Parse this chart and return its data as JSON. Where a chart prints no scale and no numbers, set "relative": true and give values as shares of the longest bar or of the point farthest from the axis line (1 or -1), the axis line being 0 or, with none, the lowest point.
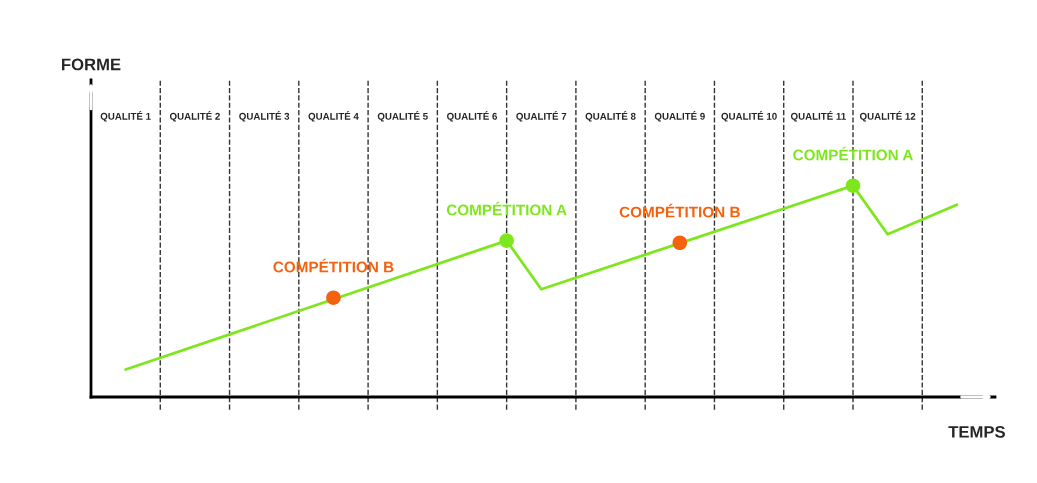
{
  "chart_data": {
    "type": "line",
    "relative": true,
    "xlabel": "TEMPS",
    "ylabel": "FORME",
    "categories": [
      "QUALITÉ 1",
      null,
      "QUALITÉ 2",
      null,
      "QUALITÉ 3",
      null,
      "QUALITÉ 4",
      null,
      "QUALITÉ 5",
      null,
      "QUALITÉ 6",
      null,
      "QUALITÉ 7",
      null,
      "QUALITÉ 8",
      null,
      "QUALITÉ 9",
      null,
      "QUALITÉ 10",
      null,
      "QUALITÉ 11",
      null,
      "QUALITÉ 12",
      null,
      null
    ],
    "series": [
      {
        "color": "#7ee61c",
        "values": [
          0.13,
          null,
          null,
          null,
          null,
          null,
          null,
          null,
          null,
          null,
          null,
          0.74,
          0.51,
          null,
          null,
          null,
          null,
          null,
          null,
          null,
          null,
          1.0,
          0.77,
          null,
          0.91
        ]
      },
      {
        "type": "scatter",
        "name": "COMPÉTITION B",
        "marker": "circle",
        "color": "#f5620f",
        "values": [
          null,
          null,
          null,
          null,
          null,
          null,
          0.47,
          null,
          null,
          null,
          null,
          null,
          null,
          null,
          null,
          null,
          0.73,
          null,
          null,
          null,
          null,
          null,
          null,
          null,
          null
        ]
      },
      {
        "type": "scatter",
        "name": "COMPÉTITION A",
        "marker": "circle",
        "color": "#7ee61c",
        "values": [
          null,
          null,
          null,
          null,
          null,
          null,
          null,
          null,
          null,
          null,
          null,
          0.74,
          null,
          null,
          null,
          null,
          null,
          null,
          null,
          null,
          null,
          1.0,
          null,
          null,
          null
        ]
      }
    ],
    "grid": "x",
    "legend": false,
    "marker": "none",
    "line_style": "solid"
  }
}
